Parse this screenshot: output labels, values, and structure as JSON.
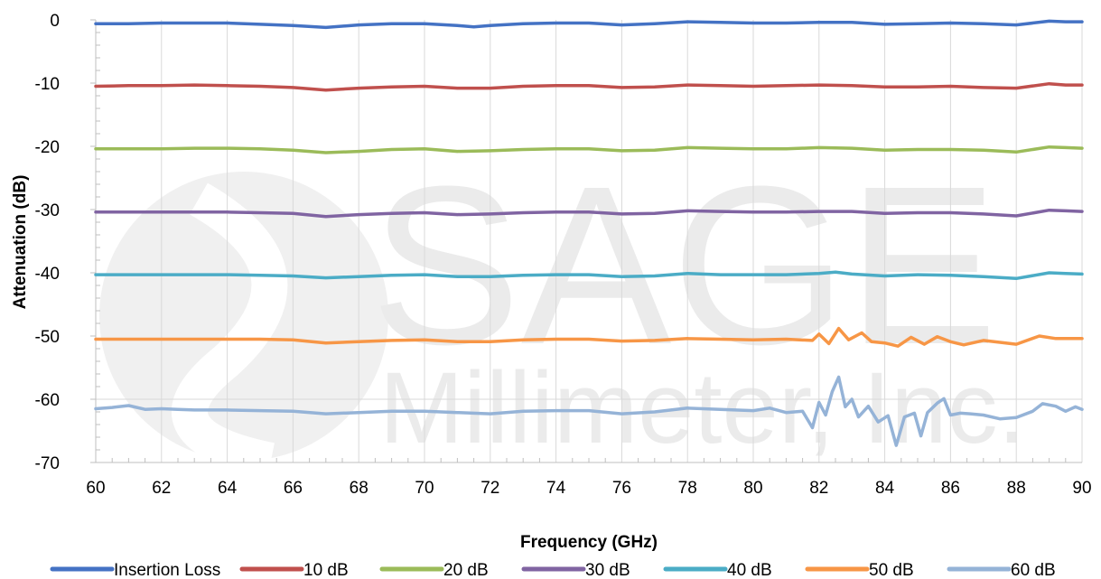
{
  "watermark": {
    "company": "SAGE",
    "subtitle": "Millimeter, Inc."
  },
  "chart_data": {
    "type": "line",
    "title": "",
    "xlabel": "Frequency (GHz)",
    "ylabel": "Attenuation (dB)",
    "xlim": [
      60,
      90
    ],
    "ylim": [
      -70,
      0
    ],
    "x_ticks": [
      "60",
      "62",
      "64",
      "66",
      "68",
      "70",
      "72",
      "74",
      "76",
      "78",
      "80",
      "82",
      "84",
      "86",
      "88",
      "90"
    ],
    "y_ticks": [
      "0",
      "-10",
      "-20",
      "-30",
      "-40",
      "-50",
      "-60",
      "-70"
    ],
    "grid": "vertical major gridlines every 2 GHz, horizontal line at -60",
    "legend_position": "bottom",
    "series": [
      {
        "name": "Insertion Loss",
        "color": "#4472C4",
        "points": [
          [
            60,
            -0.6
          ],
          [
            61,
            -0.6
          ],
          [
            62,
            -0.5
          ],
          [
            63,
            -0.5
          ],
          [
            64,
            -0.5
          ],
          [
            65,
            -0.7
          ],
          [
            66,
            -0.9
          ],
          [
            67,
            -1.2
          ],
          [
            68,
            -0.8
          ],
          [
            69,
            -0.6
          ],
          [
            70,
            -0.6
          ],
          [
            71,
            -0.9
          ],
          [
            71.5,
            -1.1
          ],
          [
            72,
            -0.9
          ],
          [
            73,
            -0.6
          ],
          [
            74,
            -0.5
          ],
          [
            75,
            -0.5
          ],
          [
            76,
            -0.8
          ],
          [
            77,
            -0.6
          ],
          [
            78,
            -0.3
          ],
          [
            79,
            -0.4
          ],
          [
            80,
            -0.5
          ],
          [
            81,
            -0.5
          ],
          [
            82,
            -0.4
          ],
          [
            83,
            -0.4
          ],
          [
            84,
            -0.7
          ],
          [
            85,
            -0.6
          ],
          [
            86,
            -0.5
          ],
          [
            87,
            -0.6
          ],
          [
            88,
            -0.8
          ],
          [
            89,
            -0.2
          ],
          [
            89.5,
            -0.3
          ],
          [
            90,
            -0.3
          ]
        ]
      },
      {
        "name": "10 dB",
        "color": "#C0504D",
        "points": [
          [
            60,
            -10.5
          ],
          [
            61,
            -10.4
          ],
          [
            62,
            -10.4
          ],
          [
            63,
            -10.3
          ],
          [
            64,
            -10.4
          ],
          [
            65,
            -10.5
          ],
          [
            66,
            -10.7
          ],
          [
            67,
            -11.1
          ],
          [
            68,
            -10.8
          ],
          [
            69,
            -10.6
          ],
          [
            70,
            -10.5
          ],
          [
            71,
            -10.8
          ],
          [
            72,
            -10.8
          ],
          [
            73,
            -10.5
          ],
          [
            74,
            -10.4
          ],
          [
            75,
            -10.4
          ],
          [
            76,
            -10.7
          ],
          [
            77,
            -10.6
          ],
          [
            78,
            -10.3
          ],
          [
            79,
            -10.4
          ],
          [
            80,
            -10.5
          ],
          [
            81,
            -10.4
          ],
          [
            82,
            -10.3
          ],
          [
            83,
            -10.4
          ],
          [
            84,
            -10.6
          ],
          [
            85,
            -10.6
          ],
          [
            86,
            -10.5
          ],
          [
            87,
            -10.7
          ],
          [
            88,
            -10.8
          ],
          [
            89,
            -10.1
          ],
          [
            89.5,
            -10.3
          ],
          [
            90,
            -10.3
          ]
        ]
      },
      {
        "name": "20 dB",
        "color": "#9BBB59",
        "points": [
          [
            60,
            -20.4
          ],
          [
            61,
            -20.4
          ],
          [
            62,
            -20.4
          ],
          [
            63,
            -20.3
          ],
          [
            64,
            -20.3
          ],
          [
            65,
            -20.4
          ],
          [
            66,
            -20.6
          ],
          [
            67,
            -21.0
          ],
          [
            68,
            -20.8
          ],
          [
            69,
            -20.5
          ],
          [
            70,
            -20.4
          ],
          [
            71,
            -20.8
          ],
          [
            72,
            -20.7
          ],
          [
            73,
            -20.5
          ],
          [
            74,
            -20.4
          ],
          [
            75,
            -20.4
          ],
          [
            76,
            -20.7
          ],
          [
            77,
            -20.6
          ],
          [
            78,
            -20.2
          ],
          [
            79,
            -20.3
          ],
          [
            80,
            -20.4
          ],
          [
            81,
            -20.4
          ],
          [
            82,
            -20.2
          ],
          [
            83,
            -20.3
          ],
          [
            84,
            -20.6
          ],
          [
            85,
            -20.5
          ],
          [
            86,
            -20.5
          ],
          [
            87,
            -20.6
          ],
          [
            88,
            -20.9
          ],
          [
            89,
            -20.1
          ],
          [
            89.5,
            -20.2
          ],
          [
            90,
            -20.3
          ]
        ]
      },
      {
        "name": "30 dB",
        "color": "#8064A2",
        "points": [
          [
            60,
            -30.4
          ],
          [
            61,
            -30.4
          ],
          [
            62,
            -30.4
          ],
          [
            63,
            -30.4
          ],
          [
            64,
            -30.4
          ],
          [
            65,
            -30.5
          ],
          [
            66,
            -30.6
          ],
          [
            67,
            -31.1
          ],
          [
            68,
            -30.8
          ],
          [
            69,
            -30.6
          ],
          [
            70,
            -30.5
          ],
          [
            71,
            -30.8
          ],
          [
            72,
            -30.7
          ],
          [
            73,
            -30.5
          ],
          [
            74,
            -30.4
          ],
          [
            75,
            -30.4
          ],
          [
            76,
            -30.7
          ],
          [
            77,
            -30.6
          ],
          [
            78,
            -30.2
          ],
          [
            79,
            -30.3
          ],
          [
            80,
            -30.4
          ],
          [
            81,
            -30.4
          ],
          [
            82,
            -30.3
          ],
          [
            83,
            -30.3
          ],
          [
            84,
            -30.6
          ],
          [
            85,
            -30.5
          ],
          [
            86,
            -30.5
          ],
          [
            87,
            -30.7
          ],
          [
            88,
            -31.0
          ],
          [
            89,
            -30.1
          ],
          [
            89.5,
            -30.2
          ],
          [
            90,
            -30.3
          ]
        ]
      },
      {
        "name": "40 dB",
        "color": "#4BACC6",
        "points": [
          [
            60,
            -40.3
          ],
          [
            61,
            -40.3
          ],
          [
            62,
            -40.3
          ],
          [
            63,
            -40.3
          ],
          [
            64,
            -40.3
          ],
          [
            65,
            -40.4
          ],
          [
            66,
            -40.5
          ],
          [
            67,
            -40.8
          ],
          [
            68,
            -40.6
          ],
          [
            69,
            -40.4
          ],
          [
            70,
            -40.3
          ],
          [
            71,
            -40.6
          ],
          [
            72,
            -40.6
          ],
          [
            73,
            -40.4
          ],
          [
            74,
            -40.3
          ],
          [
            75,
            -40.3
          ],
          [
            76,
            -40.6
          ],
          [
            77,
            -40.5
          ],
          [
            78,
            -40.1
          ],
          [
            79,
            -40.3
          ],
          [
            80,
            -40.3
          ],
          [
            81,
            -40.3
          ],
          [
            82,
            -40.1
          ],
          [
            82.5,
            -39.9
          ],
          [
            83,
            -40.2
          ],
          [
            84,
            -40.5
          ],
          [
            85,
            -40.3
          ],
          [
            86,
            -40.4
          ],
          [
            87,
            -40.6
          ],
          [
            88,
            -40.9
          ],
          [
            89,
            -40.0
          ],
          [
            89.5,
            -40.1
          ],
          [
            90,
            -40.2
          ]
        ]
      },
      {
        "name": "50 dB",
        "color": "#F79646",
        "points": [
          [
            60,
            -50.5
          ],
          [
            61,
            -50.5
          ],
          [
            62,
            -50.5
          ],
          [
            63,
            -50.5
          ],
          [
            64,
            -50.5
          ],
          [
            65,
            -50.5
          ],
          [
            66,
            -50.6
          ],
          [
            67,
            -51.1
          ],
          [
            68,
            -50.9
          ],
          [
            69,
            -50.7
          ],
          [
            70,
            -50.6
          ],
          [
            71,
            -50.9
          ],
          [
            72,
            -50.9
          ],
          [
            73,
            -50.6
          ],
          [
            74,
            -50.5
          ],
          [
            75,
            -50.5
          ],
          [
            76,
            -50.8
          ],
          [
            77,
            -50.7
          ],
          [
            78,
            -50.4
          ],
          [
            79,
            -50.5
          ],
          [
            80,
            -50.6
          ],
          [
            81,
            -50.5
          ],
          [
            81.8,
            -50.7
          ],
          [
            82,
            -49.7
          ],
          [
            82.3,
            -51.2
          ],
          [
            82.6,
            -48.8
          ],
          [
            82.9,
            -50.6
          ],
          [
            83.3,
            -49.5
          ],
          [
            83.6,
            -50.9
          ],
          [
            84,
            -51.1
          ],
          [
            84.4,
            -51.6
          ],
          [
            84.8,
            -50.2
          ],
          [
            85.2,
            -51.3
          ],
          [
            85.6,
            -50.1
          ],
          [
            86,
            -50.9
          ],
          [
            86.4,
            -51.4
          ],
          [
            87,
            -50.7
          ],
          [
            88,
            -51.3
          ],
          [
            88.7,
            -50.0
          ],
          [
            89.2,
            -50.4
          ],
          [
            90,
            -50.4
          ]
        ]
      },
      {
        "name": "60 dB",
        "color": "#95B3D7",
        "points": [
          [
            60,
            -61.5
          ],
          [
            60.5,
            -61.3
          ],
          [
            61,
            -61.0
          ],
          [
            61.5,
            -61.6
          ],
          [
            62,
            -61.5
          ],
          [
            62.5,
            -61.6
          ],
          [
            63,
            -61.7
          ],
          [
            64,
            -61.7
          ],
          [
            65,
            -61.8
          ],
          [
            66,
            -61.9
          ],
          [
            67,
            -62.3
          ],
          [
            68,
            -62.1
          ],
          [
            69,
            -61.9
          ],
          [
            70,
            -61.9
          ],
          [
            71,
            -62.1
          ],
          [
            72,
            -62.3
          ],
          [
            73,
            -61.9
          ],
          [
            74,
            -61.8
          ],
          [
            75,
            -61.8
          ],
          [
            76,
            -62.3
          ],
          [
            77,
            -62.0
          ],
          [
            78,
            -61.4
          ],
          [
            79,
            -61.6
          ],
          [
            80,
            -61.8
          ],
          [
            80.5,
            -61.4
          ],
          [
            81,
            -62.1
          ],
          [
            81.5,
            -61.9
          ],
          [
            81.8,
            -64.5
          ],
          [
            82,
            -60.5
          ],
          [
            82.2,
            -62.5
          ],
          [
            82.4,
            -58.8
          ],
          [
            82.6,
            -56.5
          ],
          [
            82.8,
            -61.2
          ],
          [
            83,
            -60.0
          ],
          [
            83.2,
            -62.8
          ],
          [
            83.5,
            -61.1
          ],
          [
            83.8,
            -63.6
          ],
          [
            84.1,
            -62.6
          ],
          [
            84.35,
            -67.3
          ],
          [
            84.6,
            -62.8
          ],
          [
            84.9,
            -62.2
          ],
          [
            85.1,
            -65.8
          ],
          [
            85.3,
            -62.1
          ],
          [
            85.6,
            -60.6
          ],
          [
            85.8,
            -59.9
          ],
          [
            86.0,
            -62.5
          ],
          [
            86.3,
            -62.2
          ],
          [
            86.6,
            -62.3
          ],
          [
            87,
            -62.5
          ],
          [
            87.5,
            -63.1
          ],
          [
            88,
            -62.9
          ],
          [
            88.5,
            -61.9
          ],
          [
            88.8,
            -60.7
          ],
          [
            89.2,
            -61.1
          ],
          [
            89.5,
            -61.9
          ],
          [
            89.8,
            -61.2
          ],
          [
            90,
            -61.6
          ]
        ]
      }
    ]
  }
}
